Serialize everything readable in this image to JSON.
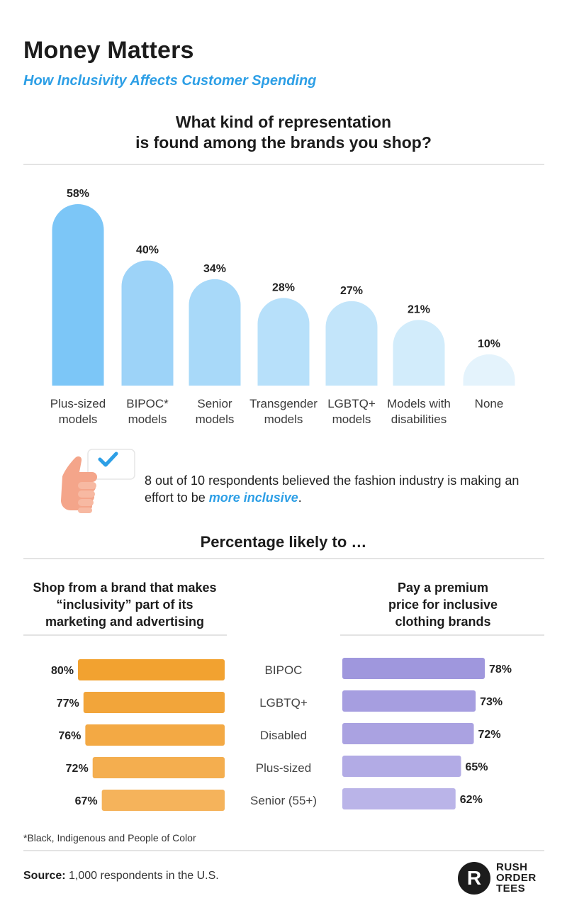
{
  "header": {
    "title": "Money Matters",
    "subtitle": "How Inclusivity Affects Customer Spending"
  },
  "representation": {
    "question_line1": "What kind of representation",
    "question_line2": "is found among the brands you shop?"
  },
  "chart_data": [
    {
      "type": "bar",
      "title": "What kind of representation is found among the brands you shop?",
      "categories": [
        [
          "Plus-sized",
          "models"
        ],
        [
          "BIPOC*",
          "models"
        ],
        [
          "Senior",
          "models"
        ],
        [
          "Transgender",
          "models"
        ],
        [
          "LGBTQ+",
          "models"
        ],
        [
          "Models with",
          "disabilities"
        ],
        [
          "None"
        ]
      ],
      "values": [
        58,
        40,
        34,
        28,
        27,
        21,
        10
      ],
      "value_labels": [
        "58%",
        "40%",
        "34%",
        "28%",
        "27%",
        "21%",
        "10%"
      ],
      "colors": [
        "#7cc6f7",
        "#9dd3f8",
        "#a8d9f9",
        "#b7e0fa",
        "#c3e5fa",
        "#d2ecfb",
        "#e4f3fc"
      ],
      "ylim": [
        0,
        58
      ]
    },
    {
      "type": "bar",
      "orientation": "horizontal",
      "title": "Shop from a brand that makes “inclusivity” part of its marketing and advertising",
      "categories": [
        "BIPOC",
        "LGBTQ+",
        "Disabled",
        "Plus-sized",
        "Senior (55+)"
      ],
      "values": [
        80,
        77,
        76,
        72,
        67
      ],
      "value_labels": [
        "80%",
        "77%",
        "76%",
        "72%",
        "67%"
      ],
      "colors": [
        "#f2a230",
        "#f2a53a",
        "#f3a944",
        "#f4ae4f",
        "#f5b35b"
      ],
      "xlim": [
        0,
        80
      ]
    },
    {
      "type": "bar",
      "orientation": "horizontal",
      "title": "Pay a premium price for inclusive clothing brands",
      "categories": [
        "BIPOC",
        "LGBTQ+",
        "Disabled",
        "Plus-sized",
        "Senior (55+)"
      ],
      "values": [
        78,
        73,
        72,
        65,
        62
      ],
      "value_labels": [
        "78%",
        "73%",
        "72%",
        "65%",
        "62%"
      ],
      "colors": [
        "#9f97dd",
        "#a69ee0",
        "#aaa2e1",
        "#b2abe5",
        "#bab4e8"
      ],
      "xlim": [
        0,
        78
      ]
    }
  ],
  "callout": {
    "text_before": "8 out of 10 respondents believed the fashion industry is making an effort to be ",
    "highlight": "more inclusive",
    "text_after": "."
  },
  "likely": {
    "title": "Percentage likely to …",
    "left_head": [
      "Shop from a brand that makes",
      "“inclusivity” part of its",
      "marketing and advertising"
    ],
    "right_head": [
      "Pay a premium",
      "price for inclusive",
      "clothing brands"
    ]
  },
  "footer": {
    "footnote": "*Black, Indigenous and People of Color",
    "source_label": "Source:",
    "source_text": " 1,000 respondents in the U.S.",
    "logo_mark": "R",
    "logo_lines": [
      "RUSH",
      "ORDER",
      "TEES"
    ]
  },
  "colors": {
    "accent_blue": "#2d9fe6",
    "rule": "#e3e3e3"
  }
}
